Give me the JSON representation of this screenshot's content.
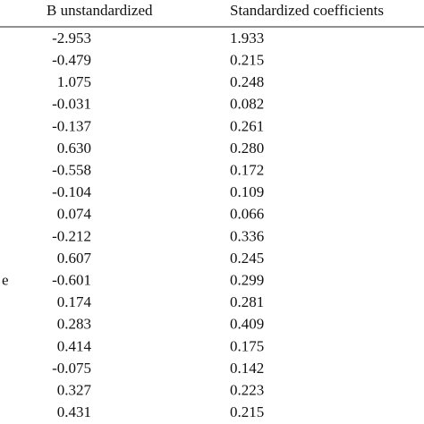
{
  "header": {
    "b": "B unstandardized",
    "std": "Standardized coefficients"
  },
  "table": {
    "rows": [
      {
        "b": "-2.953",
        "std": "1.933"
      },
      {
        "b": "-0.479",
        "std": "0.215"
      },
      {
        "b": "1.075",
        "std": "0.248"
      },
      {
        "b": "-0.031",
        "std": "0.082"
      },
      {
        "b": "-0.137",
        "std": "0.261"
      },
      {
        "b": "0.630",
        "std": "0.280"
      },
      {
        "b": "-0.558",
        "std": "0.172"
      },
      {
        "b": "-0.104",
        "std": "0.109"
      },
      {
        "b": "0.074",
        "std": "0.066"
      },
      {
        "b": "-0.212",
        "std": "0.336"
      },
      {
        "b": "0.607",
        "std": "0.245"
      },
      {
        "label": "e",
        "b": "-0.601",
        "std": "0.299"
      },
      {
        "b": "0.174",
        "std": "0.281"
      },
      {
        "b": "0.283",
        "std": "0.409"
      },
      {
        "b": "0.414",
        "std": "0.175"
      },
      {
        "b": "-0.075",
        "std": "0.142"
      },
      {
        "b": "0.327",
        "std": "0.223"
      },
      {
        "b": "0.431",
        "std": "0.215"
      }
    ]
  }
}
